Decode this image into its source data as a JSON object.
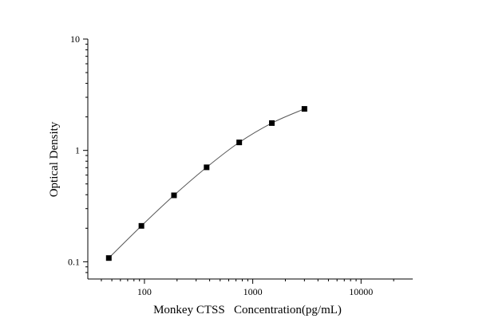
{
  "chart_data": {
    "type": "scatter",
    "xlabel": "Monkey CTSS   Concentration(pg/mL)",
    "ylabel": "Optical Density",
    "x_scale": "log",
    "y_scale": "log",
    "xlim": [
      30,
      30000
    ],
    "ylim": [
      0.07,
      10
    ],
    "x_ticks": [
      {
        "value": 100,
        "label": "100"
      },
      {
        "value": 1000,
        "label": "1000"
      },
      {
        "value": 10000,
        "label": "10000"
      }
    ],
    "y_ticks": [
      {
        "value": 0.1,
        "label": "0.1"
      },
      {
        "value": 1,
        "label": "1"
      },
      {
        "value": 10,
        "label": "10"
      }
    ],
    "grid": false,
    "fitted_curve": true,
    "x": [
      46.875,
      93.75,
      187.5,
      375,
      750,
      1500,
      3000
    ],
    "y": [
      0.108,
      0.21,
      0.395,
      0.705,
      1.18,
      1.76,
      2.36
    ]
  }
}
